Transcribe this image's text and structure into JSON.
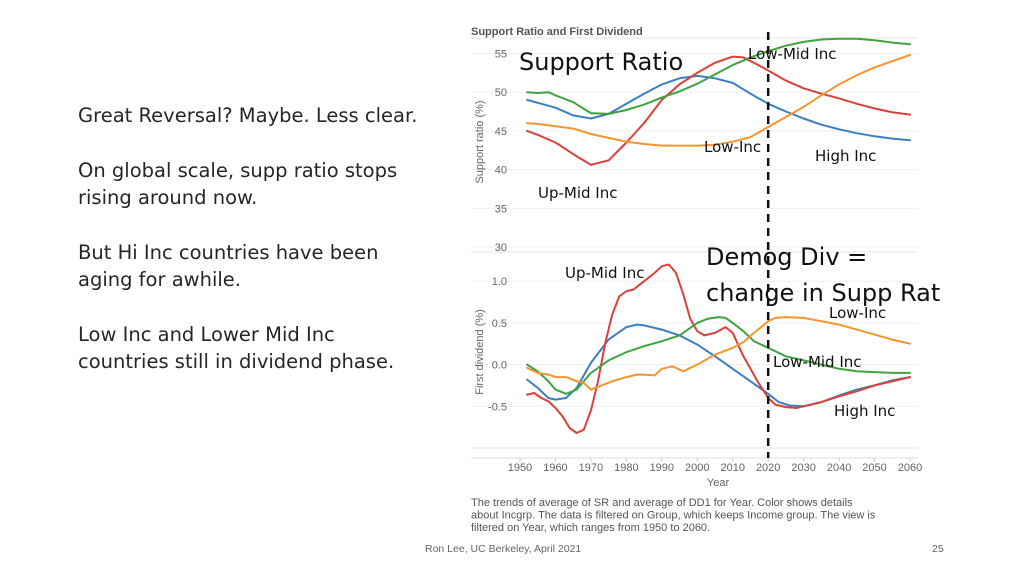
{
  "slide": {
    "bullets": [
      "Great Reversal? Maybe. Less clear.",
      "On global scale, supp ratio stops rising around now.",
      "But Hi Inc countries have been aging for awhile.",
      "Low Inc and Lower Mid Inc countries still in dividend phase."
    ],
    "footer": "Ron Lee, UC Berkeley, April 2021",
    "page_number": "25"
  },
  "chart_data": {
    "type": "line",
    "title": "Support Ratio and First Dividend",
    "xlabel": "Year",
    "x_ticks": [
      1950,
      1960,
      1970,
      1980,
      1990,
      2000,
      2010,
      2020,
      2030,
      2040,
      2050,
      2060
    ],
    "caption": [
      "The trends of average of SR and average of DD1 for Year.  Color shows details",
      "about Incgrp. The data is filtered on Group, which keeps Income group. The view is",
      "filtered on Year, which ranges from 1950 to 2060."
    ],
    "colors": {
      "High Inc": "#3a7fc1",
      "Up-Mid Inc": "#d9413a",
      "Low-Mid Inc": "#3ea33e",
      "Low-Inc": "#f5952f"
    },
    "vline_year": 2020,
    "panels": [
      {
        "id": "support-ratio",
        "ylabel": "Support ratio (%)",
        "ylim": [
          30,
          57
        ],
        "y_ticks": [
          30,
          35,
          40,
          45,
          50,
          55
        ],
        "series": [
          {
            "name": "High Inc",
            "x": [
              1952,
              1960,
              1965,
              1970,
              1975,
              1980,
              1985,
              1990,
              1995,
              2000,
              2005,
              2010,
              2015,
              2020,
              2025,
              2030,
              2035,
              2040,
              2045,
              2050,
              2055,
              2060
            ],
            "values": [
              49,
              48,
              47,
              46.6,
              47.2,
              48.5,
              49.8,
              51,
              51.8,
              52.1,
              51.8,
              51.2,
              49.8,
              48.5,
              47.5,
              46.6,
              45.8,
              45.2,
              44.7,
              44.3,
              44,
              43.8
            ]
          },
          {
            "name": "Up-Mid Inc",
            "x": [
              1952,
              1955,
              1960,
              1965,
              1970,
              1975,
              1980,
              1985,
              1990,
              1995,
              2000,
              2005,
              2010,
              2013,
              2016,
              2020,
              2025,
              2030,
              2035,
              2040,
              2045,
              2050,
              2055,
              2060
            ],
            "values": [
              45,
              44.5,
              43.5,
              42,
              40.6,
              41.2,
              43.5,
              46,
              49,
              51,
              52.5,
              53.8,
              54.6,
              54.5,
              53.8,
              52.8,
              51.5,
              50.5,
              49.8,
              49.2,
              48.5,
              47.9,
              47.4,
              47.1
            ]
          },
          {
            "name": "Low-Mid Inc",
            "x": [
              1952,
              1955,
              1958,
              1960,
              1965,
              1970,
              1975,
              1980,
              1985,
              1990,
              1995,
              2000,
              2005,
              2010,
              2015,
              2020,
              2025,
              2030,
              2035,
              2040,
              2045,
              2050,
              2055,
              2060
            ],
            "values": [
              50,
              49.9,
              50,
              49.6,
              48.7,
              47.3,
              47.2,
              47.7,
              48.4,
              49.3,
              50.1,
              51.1,
              52.3,
              53.5,
              54.5,
              55.3,
              56,
              56.5,
              56.8,
              56.9,
              56.9,
              56.7,
              56.4,
              56.2
            ]
          },
          {
            "name": "Low-Inc",
            "x": [
              1952,
              1955,
              1960,
              1965,
              1970,
              1975,
              1980,
              1985,
              1990,
              1995,
              2000,
              2005,
              2010,
              2015,
              2020,
              2025,
              2030,
              2035,
              2040,
              2045,
              2050,
              2055,
              2060
            ],
            "values": [
              46,
              45.9,
              45.6,
              45.3,
              44.6,
              44.1,
              43.6,
              43.3,
              43.1,
              43.1,
              43.1,
              43.2,
              43.6,
              44.2,
              45.5,
              46.8,
              48.1,
              49.6,
              51,
              52.2,
              53.2,
              54,
              54.8
            ]
          }
        ]
      },
      {
        "id": "first-dividend",
        "ylabel": "First dividend (%)",
        "ylim": [
          -1.0,
          1.35
        ],
        "y_ticks": [
          -0.5,
          0.0,
          0.5,
          1.0
        ],
        "y_tick_labels": [
          "-0.5",
          "0.0",
          "0.5",
          "1.0"
        ],
        "series": [
          {
            "name": "High Inc",
            "x": [
              1952,
              1955,
              1958,
              1960,
              1963,
              1966,
              1970,
              1975,
              1980,
              1983,
              1985,
              1990,
              1995,
              2000,
              2005,
              2010,
              2015,
              2020,
              2023,
              2026,
              2030,
              2035,
              2040,
              2045,
              2050,
              2055,
              2060
            ],
            "values": [
              -0.18,
              -0.28,
              -0.4,
              -0.42,
              -0.4,
              -0.28,
              0.02,
              0.3,
              0.45,
              0.48,
              0.47,
              0.42,
              0.35,
              0.24,
              0.1,
              -0.05,
              -0.2,
              -0.35,
              -0.45,
              -0.49,
              -0.5,
              -0.45,
              -0.37,
              -0.3,
              -0.25,
              -0.19,
              -0.15
            ]
          },
          {
            "name": "Up-Mid Inc",
            "x": [
              1952,
              1954,
              1956,
              1958,
              1960,
              1962,
              1964,
              1966,
              1968,
              1970,
              1972,
              1974,
              1976,
              1978,
              1980,
              1982,
              1985,
              1988,
              1990,
              1992,
              1994,
              1996,
              1998,
              2000,
              2002,
              2005,
              2008,
              2010,
              2013,
              2015,
              2017,
              2020,
              2022,
              2025,
              2028,
              2030,
              2035,
              2040,
              2045,
              2050,
              2055,
              2060
            ],
            "values": [
              -0.36,
              -0.34,
              -0.4,
              -0.44,
              -0.52,
              -0.62,
              -0.76,
              -0.82,
              -0.78,
              -0.55,
              -0.2,
              0.25,
              0.6,
              0.82,
              0.88,
              0.9,
              1.0,
              1.1,
              1.18,
              1.2,
              1.1,
              0.85,
              0.55,
              0.4,
              0.35,
              0.38,
              0.45,
              0.38,
              0.1,
              -0.05,
              -0.2,
              -0.4,
              -0.48,
              -0.51,
              -0.52,
              -0.5,
              -0.45,
              -0.38,
              -0.32,
              -0.25,
              -0.2,
              -0.15
            ]
          },
          {
            "name": "Low-Mid Inc",
            "x": [
              1952,
              1955,
              1958,
              1960,
              1963,
              1966,
              1970,
              1975,
              1980,
              1985,
              1990,
              1995,
              2000,
              2003,
              2006,
              2008,
              2010,
              2013,
              2016,
              2020,
              2025,
              2030,
              2035,
              2040,
              2045,
              2050,
              2055,
              2060
            ],
            "values": [
              0,
              -0.08,
              -0.2,
              -0.3,
              -0.35,
              -0.3,
              -0.1,
              0.05,
              0.15,
              0.22,
              0.28,
              0.35,
              0.5,
              0.55,
              0.57,
              0.56,
              0.5,
              0.4,
              0.28,
              0.2,
              0.1,
              0.05,
              0.0,
              -0.05,
              -0.08,
              -0.09,
              -0.1,
              -0.1
            ]
          },
          {
            "name": "Low-Inc",
            "x": [
              1952,
              1955,
              1958,
              1960,
              1963,
              1966,
              1968,
              1970,
              1973,
              1976,
              1980,
              1983,
              1985,
              1988,
              1990,
              1993,
              1996,
              2000,
              2005,
              2010,
              2013,
              2016,
              2018,
              2020,
              2022,
              2025,
              2030,
              2035,
              2040,
              2045,
              2050,
              2055,
              2060
            ],
            "values": [
              -0.04,
              -0.1,
              -0.12,
              -0.15,
              -0.15,
              -0.2,
              -0.22,
              -0.3,
              -0.25,
              -0.2,
              -0.15,
              -0.12,
              -0.12,
              -0.13,
              -0.05,
              -0.02,
              -0.08,
              0.0,
              0.12,
              0.2,
              0.27,
              0.38,
              0.45,
              0.52,
              0.56,
              0.57,
              0.56,
              0.52,
              0.48,
              0.42,
              0.36,
              0.3,
              0.25
            ]
          }
        ]
      }
    ],
    "annotations": [
      {
        "id": "support-ratio-heading",
        "text": "Support Ratio"
      },
      {
        "id": "sr-low-mid-inc",
        "text": "Low-Mid Inc"
      },
      {
        "id": "sr-low-inc",
        "text": "Low-Inc"
      },
      {
        "id": "sr-high-inc",
        "text": "High Inc"
      },
      {
        "id": "sr-up-mid-inc",
        "text": "Up-Mid Inc"
      },
      {
        "id": "demog-div-line1",
        "text": "Demog Div ="
      },
      {
        "id": "demog-div-line2",
        "text": "change in Supp Rat"
      },
      {
        "id": "fd-up-mid-inc",
        "text": "Up-Mid Inc"
      },
      {
        "id": "fd-low-inc",
        "text": "Low-Inc"
      },
      {
        "id": "fd-low-mid-inc",
        "text": "Low-Mid Inc"
      },
      {
        "id": "fd-high-inc",
        "text": "High Inc"
      }
    ]
  }
}
